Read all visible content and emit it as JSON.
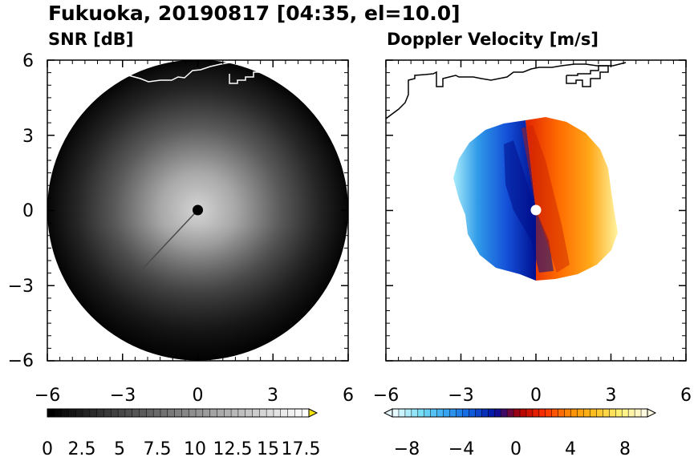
{
  "figure": {
    "title": "Fukuoka, 20190817 [04:35, el=10.0]"
  },
  "chart_data": [
    {
      "type": "heatmap",
      "title": "SNR [dB]",
      "xlim": [
        -6,
        6
      ],
      "ylim": [
        -6,
        6
      ],
      "x_ticks": [
        "−6",
        "−3",
        "0",
        "3",
        "6"
      ],
      "y_ticks": [
        "6",
        "3",
        "0",
        "−3",
        "−6"
      ],
      "data_extent_radius": 6,
      "field_description": "bright near center, fading to black at range; darker in south sector",
      "colorbar": {
        "colors": [
          "#000000",
          "#ffffff"
        ],
        "range": [
          0,
          18.5
        ],
        "labels": [
          "0",
          "2.5",
          "5",
          "7.5",
          "10",
          "12.5",
          "15",
          "17.5"
        ],
        "extend": "max",
        "extend_color": "#f2e20f"
      }
    },
    {
      "type": "heatmap",
      "title": "Doppler Velocity [m/s]",
      "xlim": [
        -6,
        6
      ],
      "ylim": [
        -6,
        6
      ],
      "x_ticks": [
        "−6",
        "−3",
        "0",
        "3",
        "6"
      ],
      "y_ticks": [],
      "data_extent_radius": 3.5,
      "field_description": "negative (blue) velocities on west side, positive (red/orange/yellow) on east side",
      "colorbar": {
        "colors": [
          "#e6faff",
          "#7adff5",
          "#38a8f2",
          "#1060e0",
          "#000fa0",
          "#b00000",
          "#ff3000",
          "#ff8a00",
          "#ffc020",
          "#fff070",
          "#fffbe0"
        ],
        "range": [
          -10,
          10
        ],
        "labels": [
          "−8",
          "−4",
          "0",
          "4",
          "8"
        ],
        "extend": "both"
      }
    }
  ]
}
